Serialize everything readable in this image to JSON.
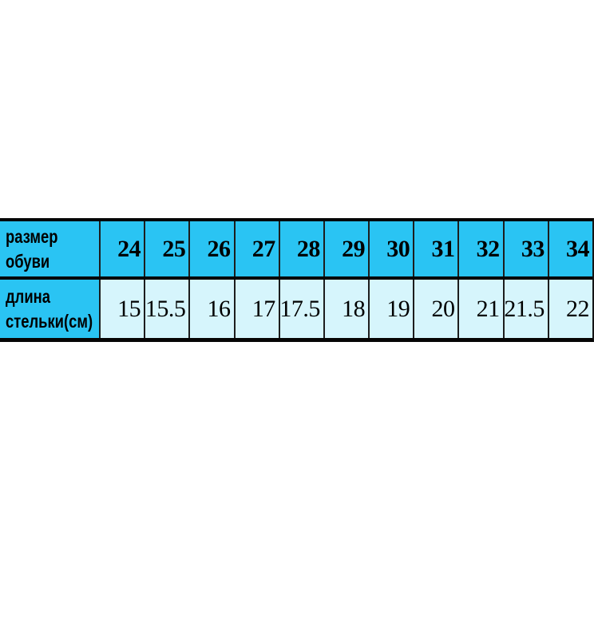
{
  "table": {
    "header_row": {
      "label_lines": [
        "размер",
        "обуви"
      ]
    },
    "value_row": {
      "label_lines": [
        "длина",
        "стельки(см)"
      ]
    },
    "sizes": [
      "24",
      "25",
      "26",
      "27",
      "28",
      "29",
      "30",
      "31",
      "32",
      "33",
      "34"
    ],
    "lengths": [
      "15",
      "15.5",
      "16",
      "17",
      "17.5",
      "18",
      "19",
      "20",
      "21",
      "21.5",
      "22"
    ]
  },
  "colors": {
    "header_bg": "#2ac4f3",
    "value_bg": "#d6f5fc",
    "border": "#050505",
    "text": "#000000",
    "page_bg": "#ffffff"
  },
  "chart_data": {
    "type": "table",
    "rows": [
      {
        "label": "размер обуви",
        "values": [
          24,
          25,
          26,
          27,
          28,
          29,
          30,
          31,
          32,
          33,
          34
        ]
      },
      {
        "label": "длина стельки(см)",
        "values": [
          15,
          15.5,
          16,
          17,
          17.5,
          18,
          19,
          20,
          21,
          21.5,
          22
        ]
      }
    ],
    "title": "",
    "notes": "shoe size to insole length (cm) conversion table"
  }
}
